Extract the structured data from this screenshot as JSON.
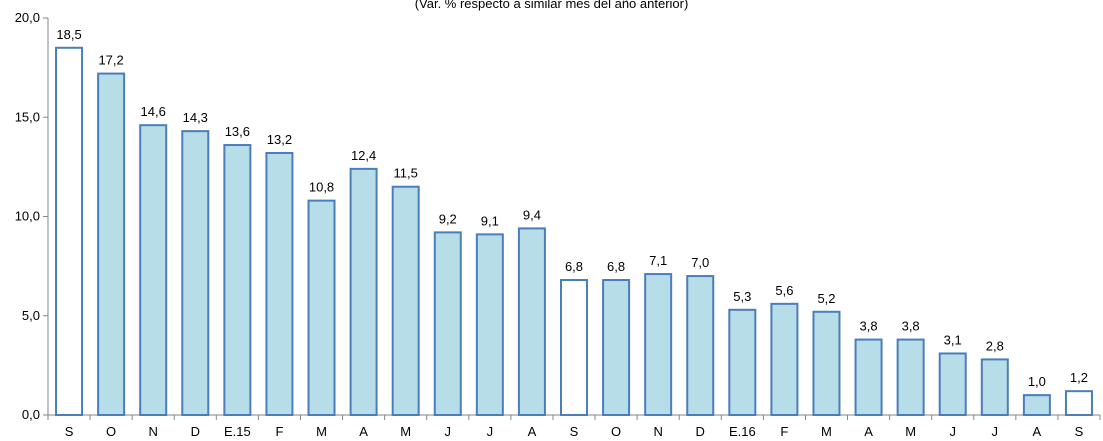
{
  "chart_data": {
    "type": "bar",
    "subtitle": "(Var. % respecto a similar mes del año anterior)",
    "categories": [
      "S",
      "O",
      "N",
      "D",
      "E.15",
      "F",
      "M",
      "A",
      "M",
      "J",
      "J",
      "A",
      "S",
      "O",
      "N",
      "D",
      "E.16",
      "F",
      "M",
      "A",
      "M",
      "J",
      "J",
      "A",
      "S"
    ],
    "values": [
      18.5,
      17.2,
      14.6,
      14.3,
      13.6,
      13.2,
      10.8,
      12.4,
      11.5,
      9.2,
      9.1,
      9.4,
      6.8,
      6.8,
      7.1,
      7.0,
      5.3,
      5.6,
      5.2,
      3.8,
      3.8,
      3.1,
      2.8,
      1.0,
      1.2
    ],
    "value_labels": [
      "18,5",
      "17,2",
      "14,6",
      "14,3",
      "13,6",
      "13,2",
      "10,8",
      "12,4",
      "11,5",
      "9,2",
      "9,1",
      "9,4",
      "6,8",
      "6,8",
      "7,1",
      "7,0",
      "5,3",
      "5,6",
      "5,2",
      "3,8",
      "3,8",
      "3,1",
      "2,8",
      "1,0",
      "1,2"
    ],
    "highlight_indices": [
      0,
      12,
      24
    ],
    "yticks": [
      0,
      5,
      10,
      15,
      20
    ],
    "ytick_labels": [
      "0,0",
      "5,0",
      "10,0",
      "15,0",
      "20,0"
    ],
    "ylim": [
      0,
      20
    ],
    "grid": false,
    "colors": {
      "fill": "#b7dde8",
      "highlight_fill": "#ffffff",
      "stroke": "#4a7ebb",
      "axis": "#868686"
    }
  }
}
